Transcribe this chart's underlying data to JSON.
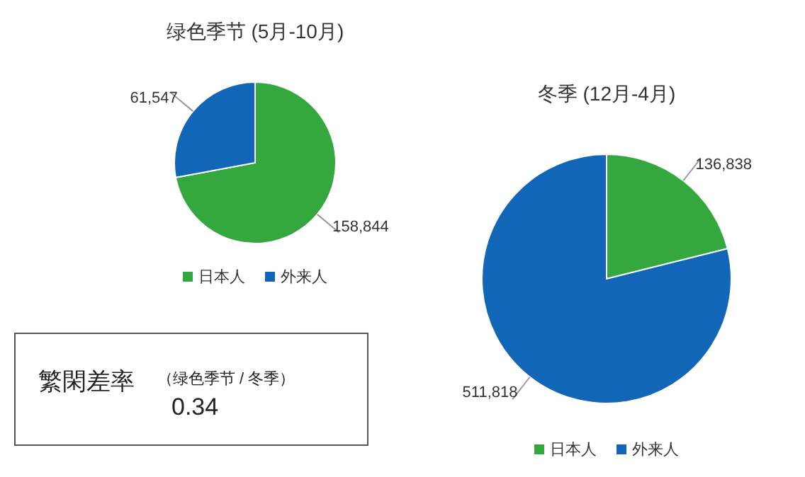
{
  "chart_data": [
    {
      "type": "pie",
      "title": "绿色季节 (5月-10月)",
      "categories": [
        "日本人",
        "外来人"
      ],
      "values": [
        158844,
        61547
      ],
      "value_labels": [
        "158,844",
        "61,547"
      ],
      "colors": [
        "#34a73f",
        "#1266b8"
      ],
      "legend": "bottom"
    },
    {
      "type": "pie",
      "title": "冬季 (12月-4月)",
      "categories": [
        "日本人",
        "外来人"
      ],
      "values": [
        136838,
        511818
      ],
      "value_labels": [
        "136,838",
        "511,818"
      ],
      "colors": [
        "#34a73f",
        "#1266b8"
      ],
      "legend": "bottom"
    },
    {
      "type": "other",
      "title": "繁閑差率",
      "subtitle": "（绿色季节 / 冬季）",
      "annotations": [
        "0.34"
      ]
    }
  ]
}
